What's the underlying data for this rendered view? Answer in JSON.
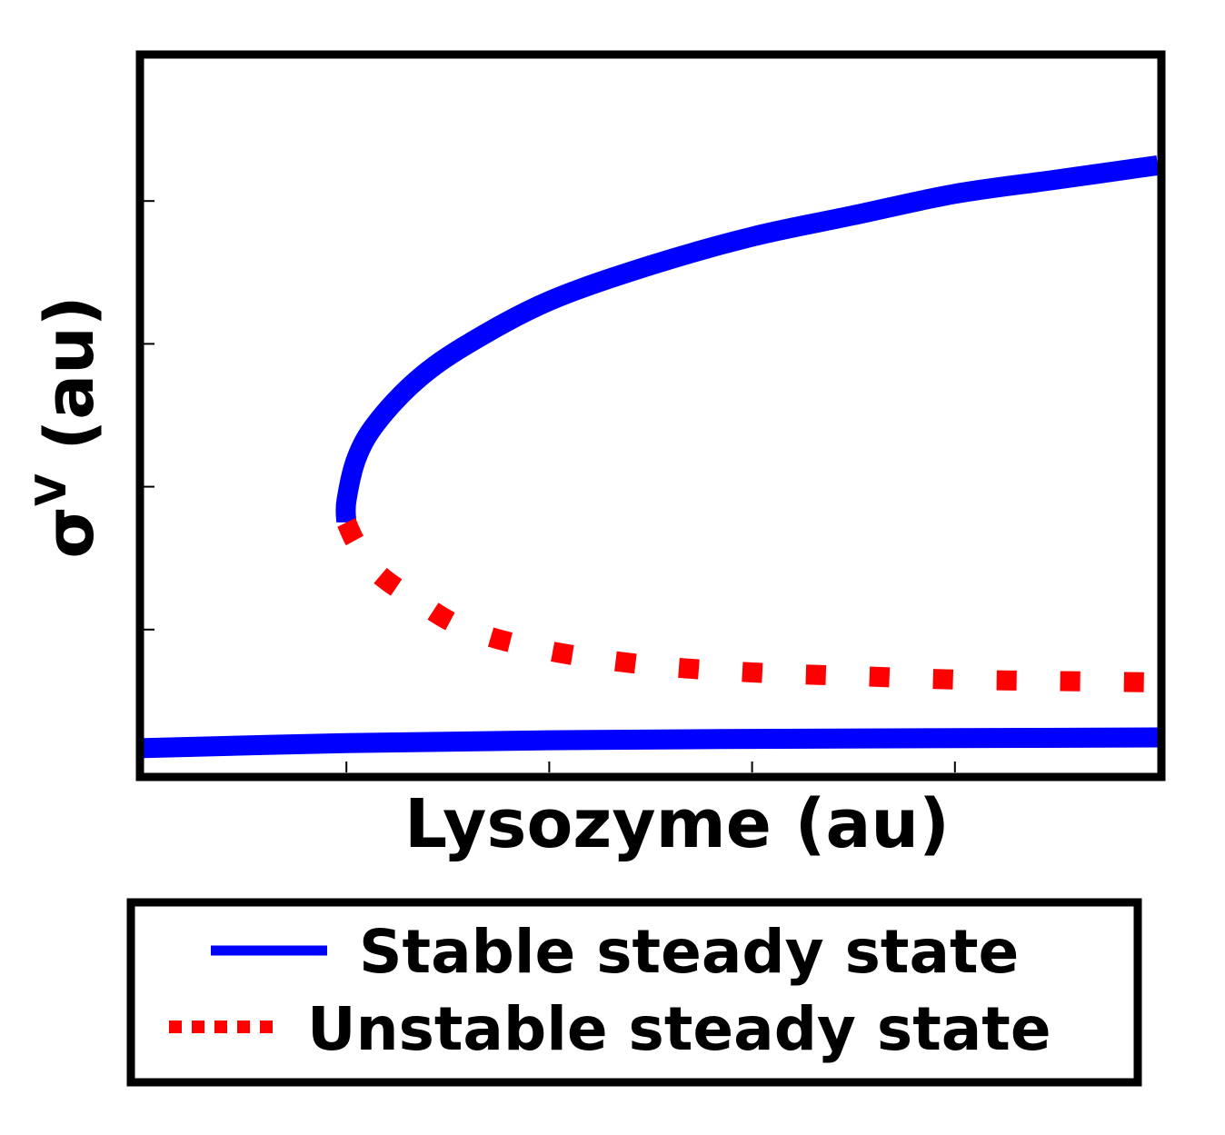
{
  "chart_data": {
    "type": "line",
    "xlabel": "Lysozyme (au)",
    "ylabel": {
      "base": "σ",
      "superscript": "V",
      "suffix": " (au)"
    },
    "xlim": [
      0,
      1
    ],
    "ylim": [
      0,
      1
    ],
    "x_ticks": [
      0.2,
      0.4,
      0.6,
      0.8
    ],
    "y_ticks": [
      0.2,
      0.4,
      0.6,
      0.8
    ],
    "tick_labels_visible": false,
    "grid": false,
    "legend_placement": "below",
    "series": [
      {
        "name": "Stable steady state",
        "style": "solid",
        "color": "#0000ff",
        "branch": "upper",
        "points": [
          [
            0.2,
            0.35
          ],
          [
            0.2,
            0.38
          ],
          [
            0.21,
            0.44
          ],
          [
            0.23,
            0.49
          ],
          [
            0.27,
            0.55
          ],
          [
            0.32,
            0.6
          ],
          [
            0.4,
            0.66
          ],
          [
            0.5,
            0.71
          ],
          [
            0.6,
            0.75
          ],
          [
            0.7,
            0.78
          ],
          [
            0.8,
            0.81
          ],
          [
            0.9,
            0.83
          ],
          [
            1.0,
            0.85
          ]
        ]
      },
      {
        "name": "Unstable steady state",
        "style": "dotted",
        "color": "#ff0000",
        "branch": "middle",
        "points": [
          [
            0.2,
            0.35
          ],
          [
            0.21,
            0.32
          ],
          [
            0.23,
            0.28
          ],
          [
            0.27,
            0.24
          ],
          [
            0.32,
            0.2
          ],
          [
            0.4,
            0.17
          ],
          [
            0.5,
            0.15
          ],
          [
            0.6,
            0.14
          ],
          [
            0.7,
            0.135
          ],
          [
            0.8,
            0.13
          ],
          [
            0.9,
            0.128
          ],
          [
            1.0,
            0.126
          ]
        ]
      },
      {
        "name": "Stable steady state",
        "style": "solid",
        "color": "#0000ff",
        "branch": "lower",
        "points": [
          [
            0.0,
            0.034
          ],
          [
            0.2,
            0.041
          ],
          [
            0.4,
            0.045
          ],
          [
            0.6,
            0.047
          ],
          [
            0.8,
            0.048
          ],
          [
            1.0,
            0.049
          ]
        ]
      }
    ],
    "legend": [
      {
        "label": "Stable steady state",
        "style": "solid",
        "color": "#0000ff"
      },
      {
        "label": "Unstable steady state",
        "style": "dotted",
        "color": "#ff0000"
      }
    ]
  }
}
